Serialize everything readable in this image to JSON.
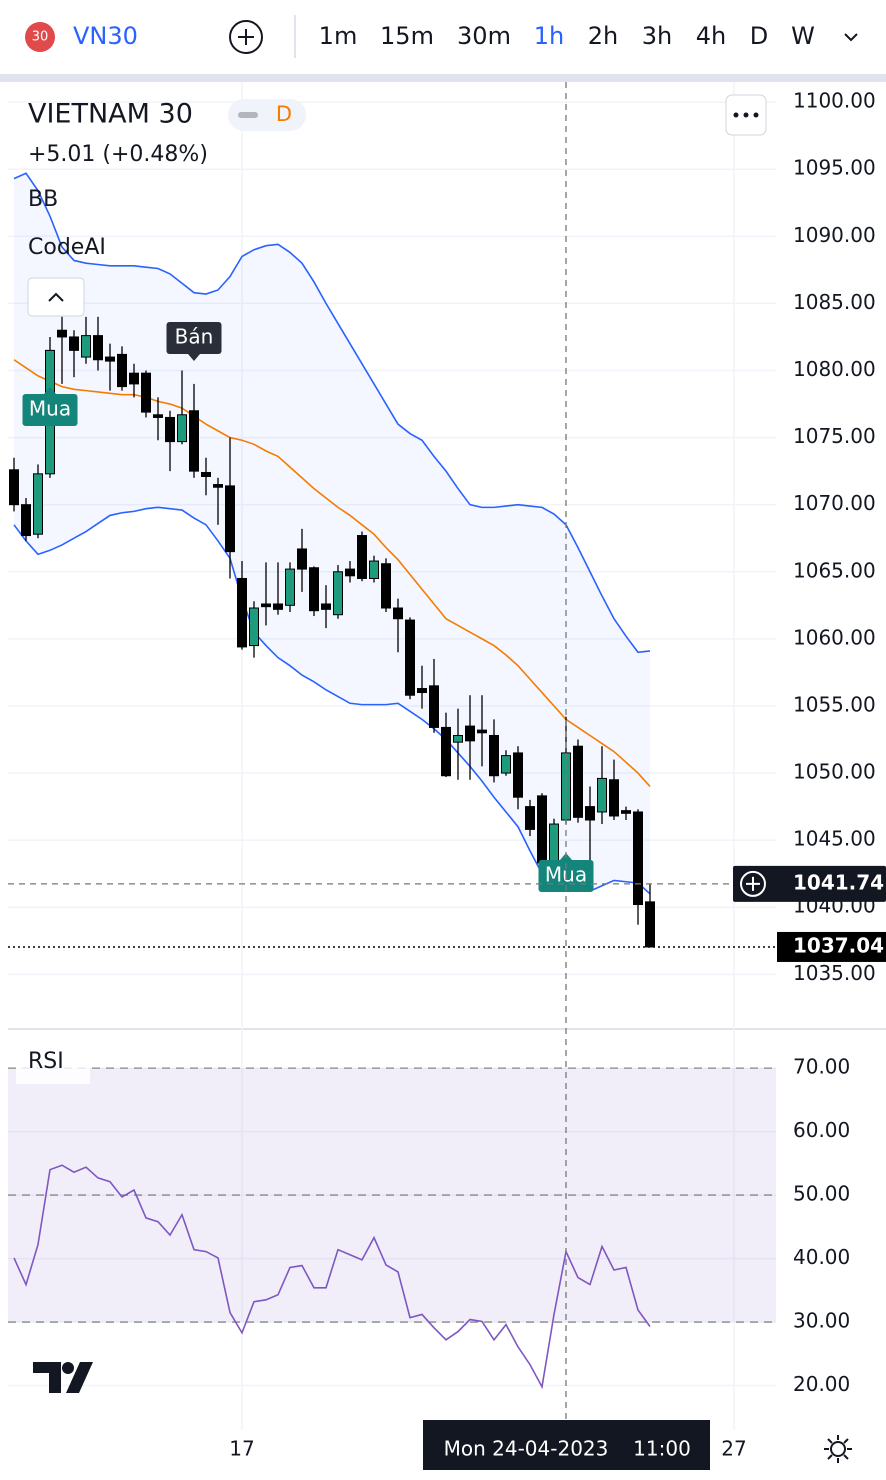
{
  "toolbar": {
    "badge": "30",
    "symbol": "VN30",
    "intervals": [
      "1m",
      "15m",
      "30m",
      "1h",
      "2h",
      "3h",
      "4h",
      "D",
      "W"
    ],
    "active_interval": "1h"
  },
  "legend": {
    "name": "VIETNAM 30",
    "timeframe": "D",
    "change": "+5.01 (+0.48%)",
    "indicators": [
      "BB",
      "CodeAI"
    ],
    "rsi": "RSI"
  },
  "chart_data": [
    {
      "type": "candlestick",
      "up_color": "#1e9a7c",
      "down_color": "#000000",
      "xlim": [
        -0.5,
        63.5
      ],
      "xticks": [
        {
          "value": 19,
          "label": "17"
        },
        {
          "value": 60,
          "label": "27"
        }
      ],
      "ylim": [
        1031,
        1101.5
      ],
      "yticks": [
        {
          "value": 1035,
          "label": "1035.00"
        },
        {
          "value": 1040,
          "label": "1040.00"
        },
        {
          "value": 1045,
          "label": "1045.00"
        },
        {
          "value": 1050,
          "label": "1050.00"
        },
        {
          "value": 1055,
          "label": "1055.00"
        },
        {
          "value": 1060,
          "label": "1060.00"
        },
        {
          "value": 1065,
          "label": "1065.00"
        },
        {
          "value": 1070,
          "label": "1070.00"
        },
        {
          "value": 1075,
          "label": "1075.00"
        },
        {
          "value": 1080,
          "label": "1080.00"
        },
        {
          "value": 1085,
          "label": "1085.00"
        },
        {
          "value": 1090,
          "label": "1090.00"
        },
        {
          "value": 1095,
          "label": "1095.00"
        },
        {
          "value": 1100,
          "label": "1100.00"
        }
      ],
      "grid": true,
      "open": [
        1072.6,
        1070,
        1067.8,
        1072.3,
        1083,
        1082.5,
        1081,
        1082.6,
        1081,
        1081.2,
        1079.8,
        1079.8,
        1076.7,
        1076.5,
        1074.7,
        1077,
        1072.4,
        1071.5,
        1071.4,
        1064.5,
        1059.5,
        1062.6,
        1062.6,
        1062.5,
        1066.7,
        1065.3,
        1062.6,
        1061.8,
        1065.2,
        1067.7,
        1064.5,
        1065.6,
        1062.3,
        1061.4,
        1056.3,
        1056.5,
        1053.4,
        1052.3,
        1053.5,
        1053.2,
        1052.8,
        1050,
        1051.5,
        1047.5,
        1048.3,
        1043,
        1046.5,
        1052,
        1047.5,
        1047.1,
        1049.5,
        1047.2,
        1047.1,
        1040.4
      ],
      "high": [
        1073.5,
        1070.5,
        1073,
        1082.5,
        1084,
        1083,
        1084,
        1084,
        1082,
        1081.8,
        1080.5,
        1080,
        1078,
        1077,
        1080,
        1079,
        1073.5,
        1072,
        1075,
        1065.8,
        1062.8,
        1065.7,
        1065.7,
        1065.7,
        1068.2,
        1065.4,
        1064,
        1065.5,
        1065.8,
        1068,
        1066.2,
        1066,
        1063,
        1061.6,
        1058,
        1058.5,
        1054.5,
        1054.8,
        1055.8,
        1055.8,
        1054,
        1051.7,
        1052,
        1048,
        1048.5,
        1046.6,
        1054.2,
        1052.5,
        1049,
        1052,
        1051,
        1047.5,
        1047.3,
        1041.7
      ],
      "low": [
        1069.5,
        1067.3,
        1067.5,
        1072,
        1079,
        1079.5,
        1080.5,
        1080,
        1078.5,
        1078.5,
        1078,
        1076.5,
        1074.8,
        1072.5,
        1074.5,
        1072,
        1070.7,
        1068.5,
        1064.5,
        1059.2,
        1058.6,
        1061,
        1061.8,
        1062,
        1063.5,
        1061.7,
        1060.8,
        1061.5,
        1064.2,
        1064.3,
        1064.2,
        1062,
        1059,
        1055.5,
        1054.8,
        1053,
        1049.7,
        1049.5,
        1049.5,
        1050.5,
        1049.3,
        1049.8,
        1047.3,
        1045.3,
        1043,
        1043,
        1046.2,
        1046.3,
        1042.5,
        1046.2,
        1046.5,
        1046.5,
        1038.7,
        1037.04
      ],
      "close": [
        1070,
        1067.7,
        1072.3,
        1081.5,
        1082.5,
        1081.5,
        1082.6,
        1080.8,
        1080.7,
        1078.8,
        1079,
        1076.9,
        1076.5,
        1074.7,
        1076.7,
        1072.5,
        1072.1,
        1071.3,
        1066.5,
        1059.4,
        1062.3,
        1062.4,
        1062.2,
        1065.2,
        1065.2,
        1062.1,
        1062.2,
        1065,
        1064.7,
        1064.5,
        1065.8,
        1062.3,
        1061.5,
        1055.8,
        1056,
        1053.4,
        1049.8,
        1052.8,
        1052.4,
        1053,
        1049.8,
        1051.3,
        1048.2,
        1045.8,
        1043.3,
        1046.2,
        1051.5,
        1046.7,
        1046.5,
        1049.6,
        1046.8,
        1047,
        1040.2,
        1037.04
      ],
      "bb": {
        "upper_color": "#2962ff",
        "middle_color": "#f57c00",
        "upper": [
          1094.3,
          1094.7,
          1093.4,
          1091.5,
          1089.2,
          1088.2,
          1088,
          1087.9,
          1087.8,
          1087.8,
          1087.8,
          1087.7,
          1087.6,
          1087.2,
          1086.5,
          1085.8,
          1085.7,
          1086,
          1087,
          1088.5,
          1089,
          1089.3,
          1089.4,
          1088.8,
          1088,
          1086.6,
          1085,
          1083.5,
          1082,
          1080.5,
          1079,
          1077.5,
          1076,
          1075.3,
          1074.8,
          1073.6,
          1072.5,
          1071.2,
          1070,
          1069.8,
          1069.8,
          1069.9,
          1070,
          1069.9,
          1069.8,
          1069.3,
          1068.5,
          1066.8,
          1065,
          1063.2,
          1061.5,
          1060.2,
          1059,
          1059.1
        ],
        "middle": [
          1080.8,
          1080.2,
          1079.6,
          1079.2,
          1078.8,
          1078.6,
          1078.5,
          1078.4,
          1078.3,
          1078.2,
          1078.2,
          1078,
          1077.7,
          1077.5,
          1077.2,
          1076.6,
          1076,
          1075.5,
          1075,
          1074.8,
          1074.5,
          1074,
          1073.6,
          1072.8,
          1072,
          1071.2,
          1070.5,
          1069.8,
          1069.2,
          1068.5,
          1067.8,
          1066.8,
          1065.9,
          1064.8,
          1063.7,
          1062.6,
          1061.5,
          1061,
          1060.5,
          1060,
          1059.5,
          1058.8,
          1058,
          1057,
          1056,
          1055,
          1054,
          1053.4,
          1052.8,
          1052.2,
          1051.6,
          1050.8,
          1050,
          1049
        ],
        "lower": [
          1068.5,
          1067.3,
          1066.3,
          1066.6,
          1067,
          1067.5,
          1068,
          1068.6,
          1069.2,
          1069.4,
          1069.5,
          1069.7,
          1069.8,
          1069.7,
          1069.6,
          1069,
          1068.5,
          1067.3,
          1066,
          1063,
          1060.5,
          1059.5,
          1058.6,
          1058,
          1057.3,
          1056.8,
          1056.2,
          1055.7,
          1055.2,
          1055.1,
          1055.1,
          1055.1,
          1055.2,
          1054.6,
          1054,
          1053.3,
          1052.5,
          1051.5,
          1050.5,
          1049.4,
          1048.2,
          1047.1,
          1046,
          1044.2,
          1042.5,
          1042.2,
          1042,
          1041.6,
          1041.2,
          1041.6,
          1042,
          1041.9,
          1041.8,
          1041
        ]
      },
      "annotations": [
        {
          "index": 3,
          "text": "Mua"
        },
        {
          "index": 15,
          "text": "Bán"
        },
        {
          "index": 46,
          "text": "Mua"
        }
      ],
      "last_price": {
        "value": 1037.04,
        "label": "1037.04"
      },
      "crosshair": {
        "index": 46,
        "price": 1041.74,
        "price_label": "1041.74",
        "date": "Mon 24-04-2023",
        "time": "11:00"
      }
    },
    {
      "type": "line",
      "color": "#7e57c2",
      "ylim": [
        13,
        76
      ],
      "yticks": [
        {
          "value": 20,
          "label": "20.00"
        },
        {
          "value": 30,
          "label": "30.00"
        },
        {
          "value": 40,
          "label": "40.00"
        },
        {
          "value": 50,
          "label": "50.00"
        },
        {
          "value": 60,
          "label": "60.00"
        },
        {
          "value": 70,
          "label": "70.00"
        }
      ],
      "levels": [
        30,
        50,
        70
      ],
      "values": [
        40.1,
        35.9,
        42.2,
        54,
        54.7,
        53.6,
        54.4,
        52.7,
        52.1,
        49.7,
        50.8,
        46.4,
        45.8,
        43.7,
        46.9,
        41.4,
        41.1,
        40.1,
        31.5,
        28.3,
        33.2,
        33.5,
        34.3,
        38.6,
        38.9,
        35.4,
        35.4,
        41.4,
        40.6,
        39.8,
        43.3,
        39,
        37.9,
        30.7,
        31.2,
        29.1,
        27.2,
        28.5,
        30.4,
        30.1,
        27.2,
        29.6,
        26.1,
        23.3,
        19.8,
        31.2,
        41.1,
        37,
        35.9,
        41.9,
        38.2,
        38.6,
        31.9,
        29.3
      ]
    }
  ]
}
